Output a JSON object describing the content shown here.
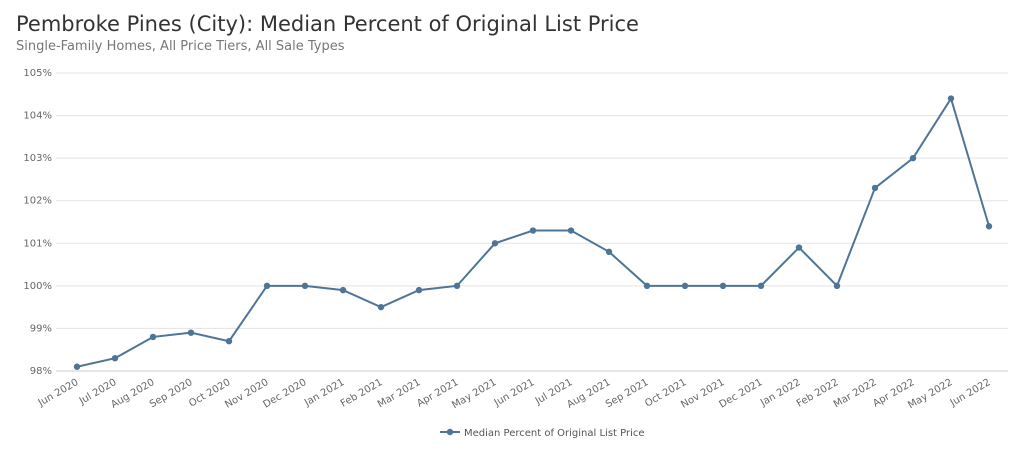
{
  "header": {
    "title": "Pembroke Pines (City): Median Percent of Original List Price",
    "subtitle": "Single-Family Homes, All Price Tiers, All Sale Types"
  },
  "chart_data": {
    "type": "line",
    "title": "Pembroke Pines (City): Median Percent of Original List Price",
    "subtitle": "Single-Family Homes, All Price Tiers, All Sale Types",
    "xlabel": "",
    "ylabel": "",
    "ylim": [
      98,
      105
    ],
    "y_ticks": [
      "98%",
      "99%",
      "100%",
      "101%",
      "102%",
      "103%",
      "104%",
      "105%"
    ],
    "categories": [
      "Jun 2020",
      "Jul 2020",
      "Aug 2020",
      "Sep 2020",
      "Oct 2020",
      "Nov 2020",
      "Dec 2020",
      "Jan 2021",
      "Feb 2021",
      "Mar 2021",
      "Apr 2021",
      "May 2021",
      "Jun 2021",
      "Jul 2021",
      "Aug 2021",
      "Sep 2021",
      "Oct 2021",
      "Nov 2021",
      "Dec 2021",
      "Jan 2022",
      "Feb 2022",
      "Mar 2022",
      "Apr 2022",
      "May 2022",
      "Jun 2022"
    ],
    "series": [
      {
        "name": "Median Percent of Original List Price",
        "color": "#4e7597",
        "values": [
          98.1,
          98.3,
          98.8,
          98.9,
          98.7,
          100.0,
          100.0,
          99.9,
          99.5,
          99.9,
          100.0,
          101.0,
          101.3,
          101.3,
          100.8,
          100.0,
          100.0,
          100.0,
          100.0,
          100.9,
          100.0,
          102.3,
          103.0,
          104.4,
          101.4
        ]
      }
    ],
    "grid": true,
    "legend": "bottom-center"
  }
}
